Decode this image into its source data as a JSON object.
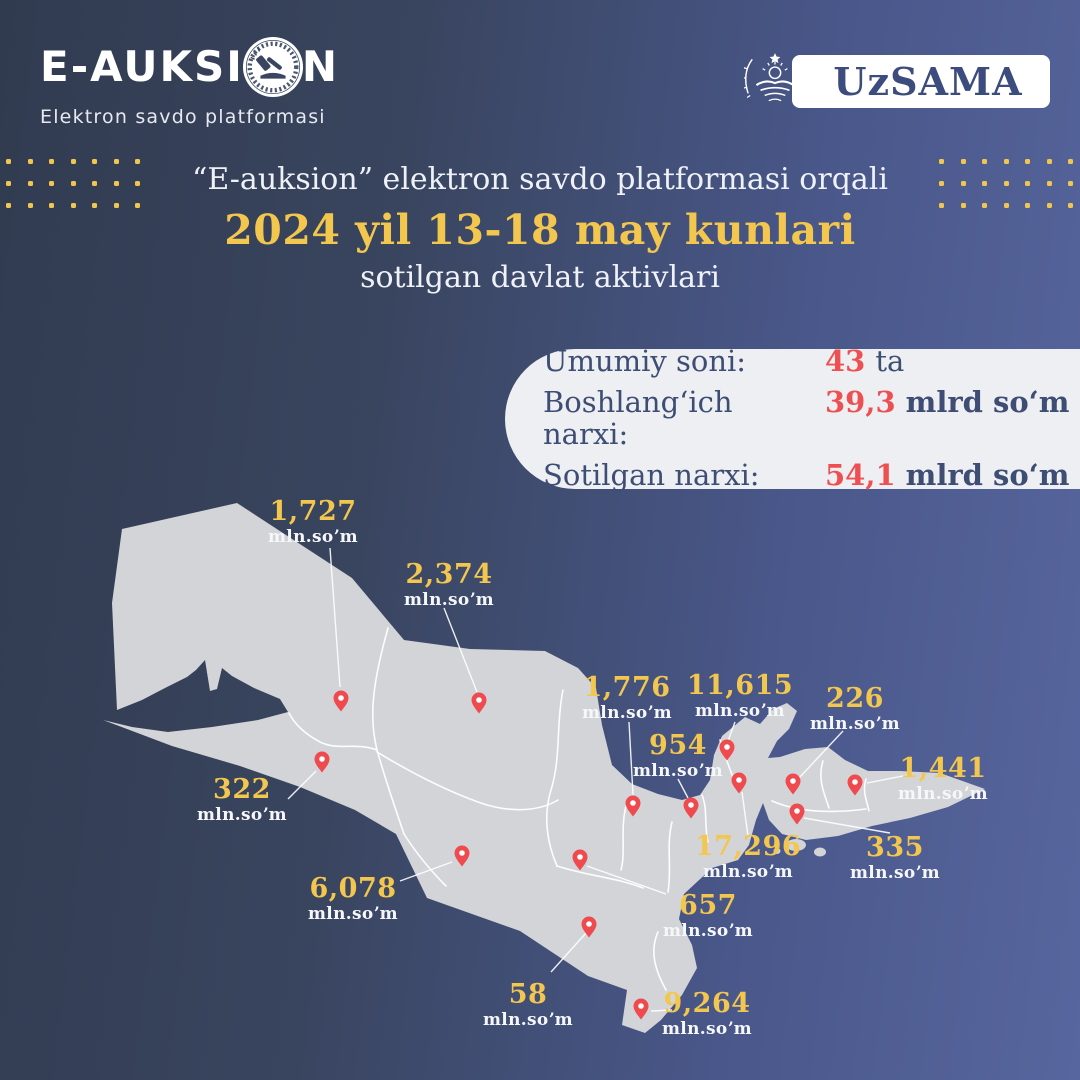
{
  "brand": {
    "logo_text_left": "E-AUKSI",
    "logo_text_right": "N",
    "logo_subtitle": "Elektron savdo platformasi",
    "org_name": "UzSAMA"
  },
  "title": {
    "line1": "“E-auksion” elektron savdo platformasi orqali",
    "line2": "2024 yil 13-18 may kunlari",
    "line3": "sotilgan davlat aktivlari"
  },
  "stats": {
    "rows": [
      {
        "label": "Umumiy soni:",
        "value": "43",
        "unit": "ta"
      },
      {
        "label": "Boshlangʻich narxi:",
        "value": "39,3",
        "unit": "mlrd soʻm"
      },
      {
        "label": "Sotilgan narxi:",
        "value": "54,1",
        "unit": "mlrd soʻm"
      }
    ]
  },
  "map": {
    "unit_label": "mln.soʼm",
    "markers": [
      {
        "value": "1,727",
        "num": [
          313,
          512
        ],
        "pin": [
          341,
          701
        ],
        "line": [
          [
            330,
            548
          ],
          [
            340,
            687
          ]
        ]
      },
      {
        "value": "2,374",
        "num": [
          449,
          575
        ],
        "pin": [
          479,
          703
        ],
        "line": [
          [
            444,
            608
          ],
          [
            477,
            692
          ]
        ]
      },
      {
        "value": "322",
        "num": [
          242,
          790
        ],
        "pin": [
          322,
          762
        ],
        "line": [
          [
            288,
            799
          ],
          [
            316,
            771
          ]
        ]
      },
      {
        "value": "6,078",
        "num": [
          353,
          889
        ],
        "pin": [
          462,
          856
        ],
        "line": [
          [
            400,
            881
          ],
          [
            452,
            862
          ]
        ]
      },
      {
        "value": "1,776",
        "num": [
          627,
          688
        ],
        "pin": [
          633,
          806
        ],
        "line": [
          [
            629,
            722
          ],
          [
            633,
            795
          ]
        ]
      },
      {
        "value": "954",
        "num": [
          678,
          746
        ],
        "pin": [
          691,
          808
        ],
        "line": [
          [
            678,
            779
          ],
          [
            688,
            798
          ]
        ]
      },
      {
        "value": "11,615",
        "num": [
          740,
          686
        ],
        "pin": [
          727,
          750
        ],
        "line": [
          [
            735,
            722
          ],
          [
            728,
            741
          ]
        ]
      },
      {
        "value": "17,296",
        "num": [
          748,
          847
        ],
        "pin": [
          739,
          783
        ],
        "line": [
          [
            742,
            792
          ],
          [
            748,
            836
          ]
        ]
      },
      {
        "value": "226",
        "num": [
          855,
          699
        ],
        "pin": [
          793,
          784
        ],
        "line": [
          [
            843,
            731
          ],
          [
            799,
            778
          ]
        ]
      },
      {
        "value": "1,441",
        "num": [
          943,
          769
        ],
        "pin": [
          855,
          785
        ],
        "line": [
          [
            867,
            783
          ],
          [
            908,
            775
          ]
        ]
      },
      {
        "value": "335",
        "num": [
          895,
          848
        ],
        "pin": [
          797,
          814
        ],
        "line": [
          [
            804,
            818
          ],
          [
            890,
            833
          ]
        ]
      },
      {
        "value": "657",
        "num": [
          708,
          906
        ],
        "pin": [
          580,
          860
        ],
        "line": [
          [
            587,
            866
          ],
          [
            666,
            894
          ]
        ]
      },
      {
        "value": "58",
        "num": [
          528,
          995
        ],
        "pin": [
          589,
          927
        ],
        "line": [
          [
            551,
            972
          ],
          [
            586,
            933
          ]
        ]
      },
      {
        "value": "9,264",
        "num": [
          707,
          1004
        ],
        "pin": [
          641,
          1009
        ],
        "line": [
          [
            651,
            1011
          ],
          [
            672,
            1010
          ]
        ]
      }
    ]
  },
  "colors": {
    "accent_yellow": "#f3c74e",
    "pin_red": "#ef4b4e",
    "stat_number_red": "#ee5052",
    "navy_text": "#3e4d74",
    "map_gray": "#d2d4d8",
    "bg_dark": "#313b50",
    "bg_light": "#57669e"
  }
}
